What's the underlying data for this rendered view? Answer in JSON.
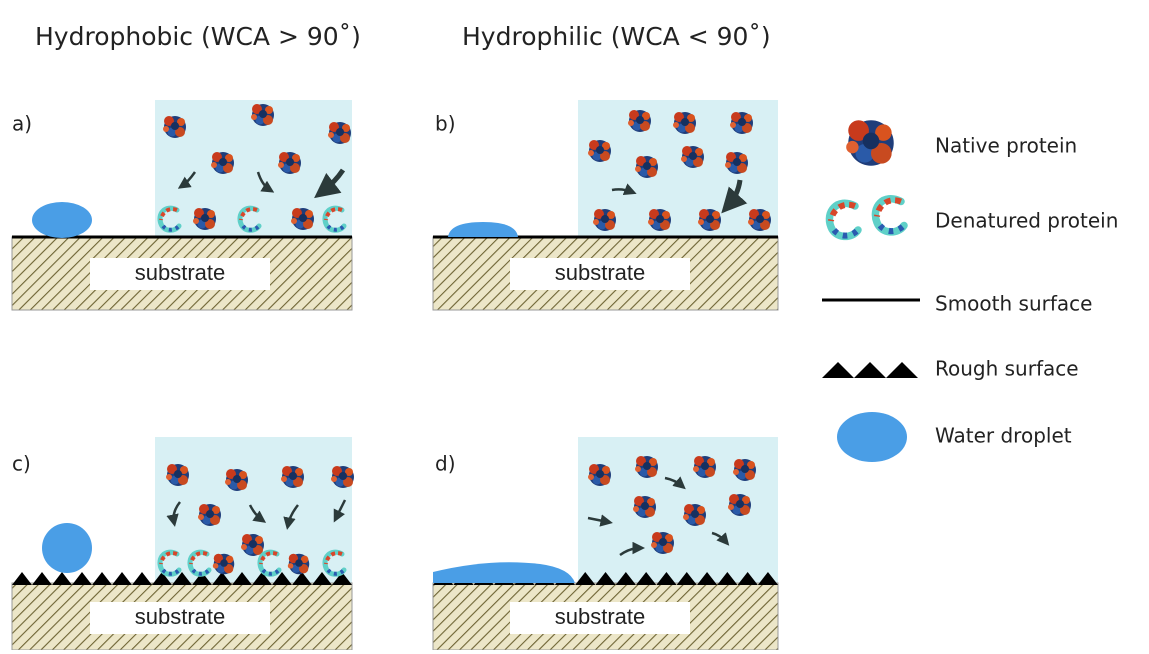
{
  "headers": [
    "Hydrophobic (WCA > 90˚)",
    "Hydrophilic (WCA < 90˚)"
  ],
  "panels": [
    {
      "label": "a)",
      "substrate": "substrate"
    },
    {
      "label": "b)",
      "substrate": "substrate"
    },
    {
      "label": "c)",
      "substrate": "substrate"
    },
    {
      "label": "d)",
      "substrate": "substrate"
    }
  ],
  "legend": [
    {
      "label": "Native protein"
    },
    {
      "label": "Denatured protein"
    },
    {
      "label": "Smooth surface"
    },
    {
      "label": "Rough surface"
    },
    {
      "label": "Water droplet"
    }
  ]
}
